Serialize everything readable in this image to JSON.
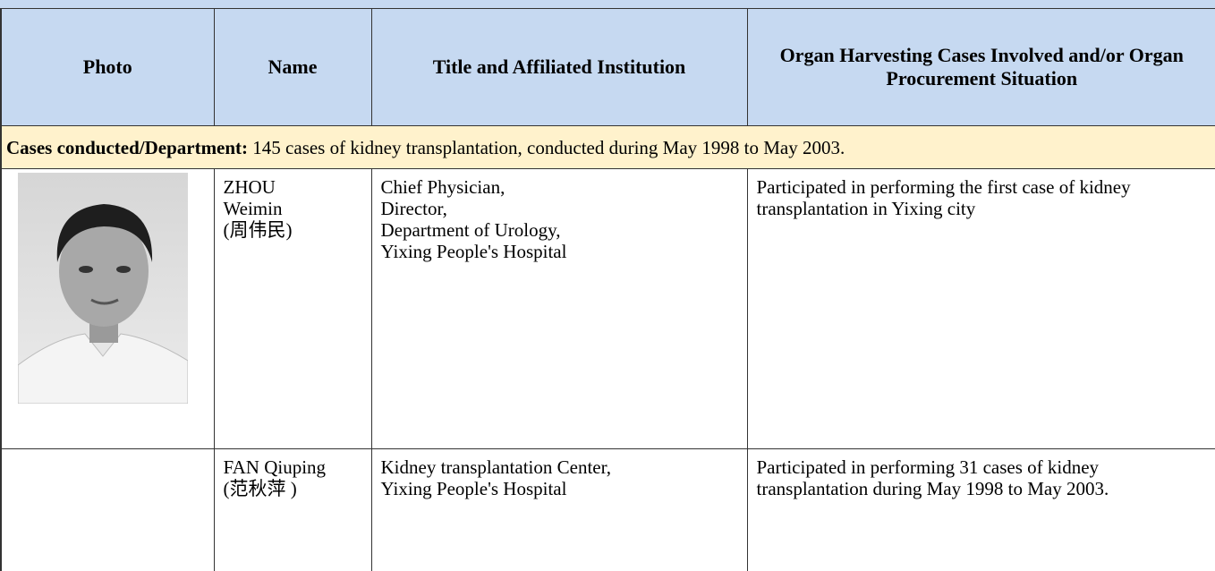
{
  "table": {
    "columns": [
      "Photo",
      "Name",
      "Title and Affiliated Institution",
      "Organ Harvesting Cases Involved and/or Organ Procurement Situation"
    ],
    "section": {
      "label": "Cases conducted/Department:",
      "text": "145 cases of kidney transplantation, conducted during May 1998 to May 2003."
    },
    "rows": [
      {
        "name": [
          "ZHOU",
          "Weimin",
          "(周伟民)"
        ],
        "title": [
          "Chief Physician,",
          "Director,",
          "Department of Urology,",
          "Yixing People's Hospital"
        ],
        "cases": "Participated in performing the first case of kidney transplantation in Yixing city"
      },
      {
        "name": [
          "FAN Qiuping",
          "(范秋萍 )"
        ],
        "title": [
          "Kidney transplantation Center,",
          "Yixing People's Hospital"
        ],
        "cases": "Participated in performing 31 cases of kidney transplantation during May 1998 to May 2003."
      }
    ]
  }
}
